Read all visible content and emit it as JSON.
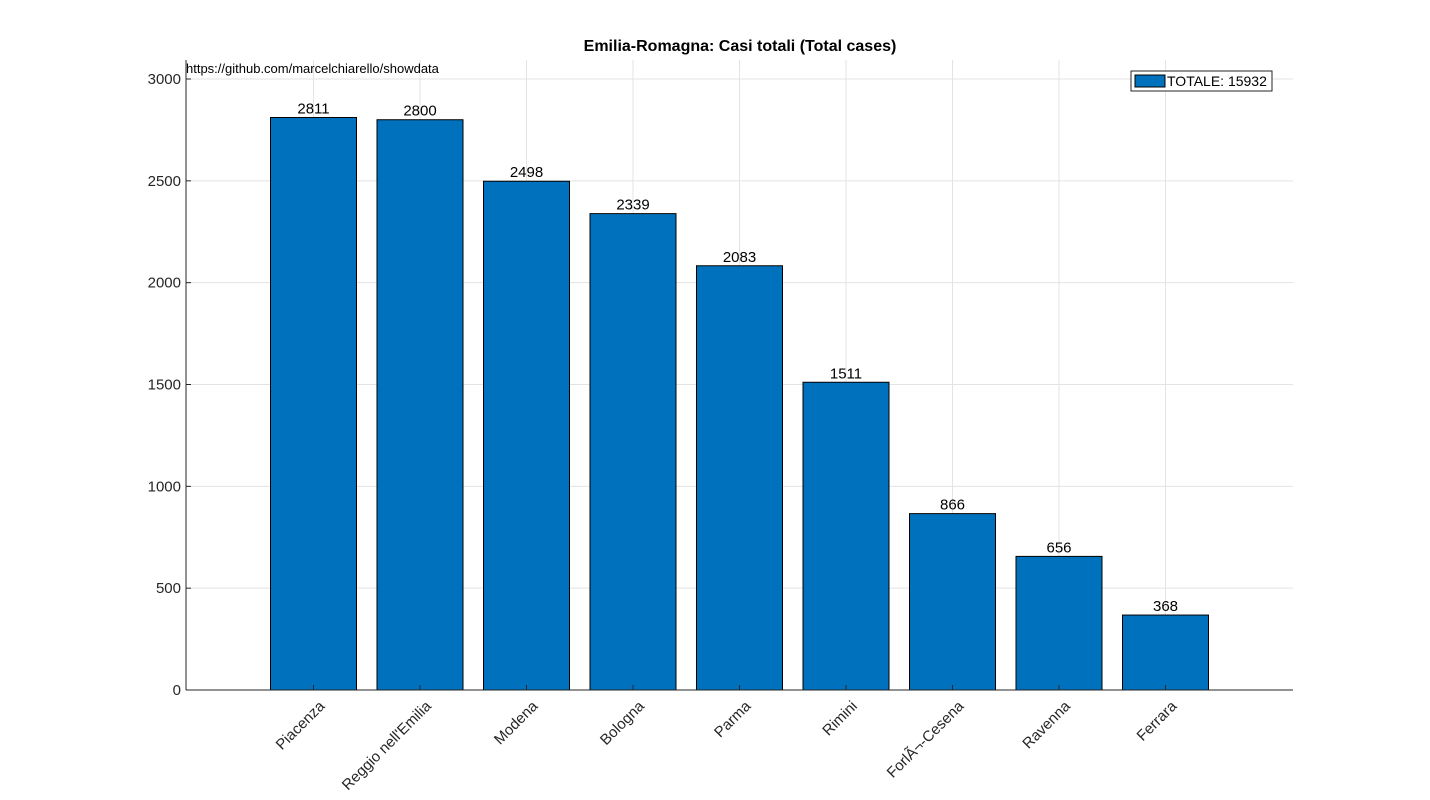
{
  "chart_data": {
    "type": "bar",
    "title": "Emilia-Romagna: Casi totali (Total cases)",
    "source_text": "https://github.com/marcelchiarello/showdata",
    "categories": [
      "Piacenza",
      "Reggio nell'Emilia",
      "Modena",
      "Bologna",
      "Parma",
      "Rimini",
      "ForlÃ¬-Cesena",
      "Ravenna",
      "Ferrara"
    ],
    "values": [
      2811,
      2800,
      2498,
      2339,
      2083,
      1511,
      866,
      656,
      368
    ],
    "data_labels": [
      "2811",
      "2800",
      "2498",
      "2339",
      "2083",
      "1511",
      "866",
      "656",
      "368"
    ],
    "series": [
      {
        "name": "TOTALE: 15932",
        "color": "#0072bd"
      }
    ],
    "ylim": [
      0,
      3000
    ],
    "yticks": [
      0,
      500,
      1000,
      1500,
      2000,
      2500,
      3000
    ],
    "ytick_labels": [
      "0",
      "500",
      "1000",
      "1500",
      "2000",
      "2500",
      "3000"
    ],
    "xlabel": "",
    "ylabel": "",
    "grid": true,
    "legend_position": "top-right",
    "bar_color": "#0072bd"
  }
}
